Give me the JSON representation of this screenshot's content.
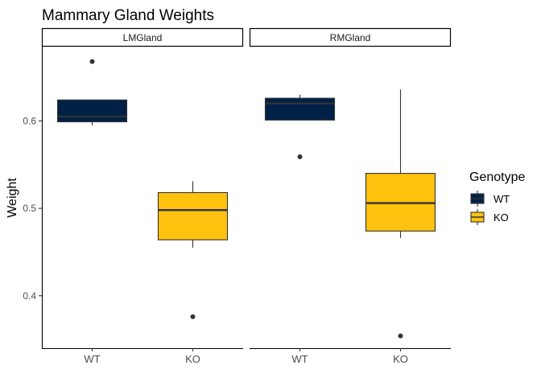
{
  "chart_data": {
    "type": "boxplot",
    "title": "Mammary Gland Weights",
    "xlabel": "",
    "ylabel": "Weight",
    "ylim": [
      0.34,
      0.685
    ],
    "yticks": [
      0.4,
      0.5,
      0.6
    ],
    "ytick_labels": [
      "0.4",
      "0.5",
      "0.6"
    ],
    "grid": false,
    "legend": {
      "title": "Genotype",
      "position": "right",
      "entries": [
        {
          "label": "WT",
          "color": "#002147"
        },
        {
          "label": "KO",
          "color": "#FFC20E"
        }
      ]
    },
    "categories": [
      "WT",
      "KO"
    ],
    "panels": [
      {
        "name": "LMGland",
        "boxes": [
          {
            "category": "WT",
            "color": "#002147",
            "whisker_low": 0.595,
            "q1": 0.599,
            "median": 0.605,
            "q3": 0.624,
            "whisker_high": 0.624,
            "outliers": [
              0.668
            ]
          },
          {
            "category": "KO",
            "color": "#FFC20E",
            "whisker_low": 0.455,
            "q1": 0.464,
            "median": 0.498,
            "q3": 0.518,
            "whisker_high": 0.531,
            "outliers": [
              0.376
            ]
          }
        ]
      },
      {
        "name": "RMGland",
        "boxes": [
          {
            "category": "WT",
            "color": "#002147",
            "whisker_low": 0.601,
            "q1": 0.601,
            "median": 0.62,
            "q3": 0.626,
            "whisker_high": 0.63,
            "outliers": [
              0.559
            ]
          },
          {
            "category": "KO",
            "color": "#FFC20E",
            "whisker_low": 0.466,
            "q1": 0.474,
            "median": 0.506,
            "q3": 0.54,
            "whisker_high": 0.636,
            "outliers": [
              0.354
            ]
          }
        ]
      }
    ]
  }
}
